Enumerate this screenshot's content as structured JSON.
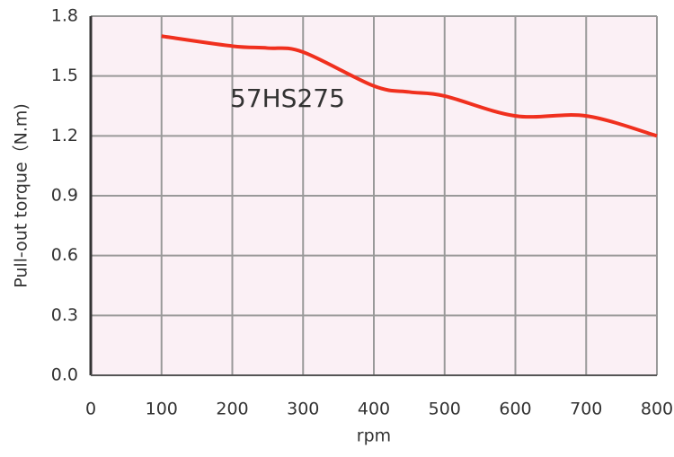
{
  "chart_data": {
    "type": "line",
    "annotation": "57HS275",
    "x_label": "rpm",
    "y_label": "Pull-out torque（N.m)",
    "x": [
      100,
      200,
      250,
      300,
      400,
      450,
      500,
      600,
      700,
      800
    ],
    "series": [
      {
        "color": "#f0301e",
        "values": [
          1.7,
          1.65,
          1.64,
          1.62,
          1.45,
          1.42,
          1.4,
          1.3,
          1.3,
          1.2
        ]
      }
    ],
    "xlim": [
      0,
      800
    ],
    "xticks": [
      0,
      100,
      200,
      300,
      400,
      500,
      600,
      700,
      800
    ],
    "ylim": [
      0,
      1.8
    ],
    "yticks": [
      {
        "value": 0,
        "label": "0.0"
      },
      0.3,
      0.6,
      0.9,
      1.2,
      1.5,
      1.8
    ],
    "grid": true,
    "plot_background": "#fbf0f5"
  }
}
